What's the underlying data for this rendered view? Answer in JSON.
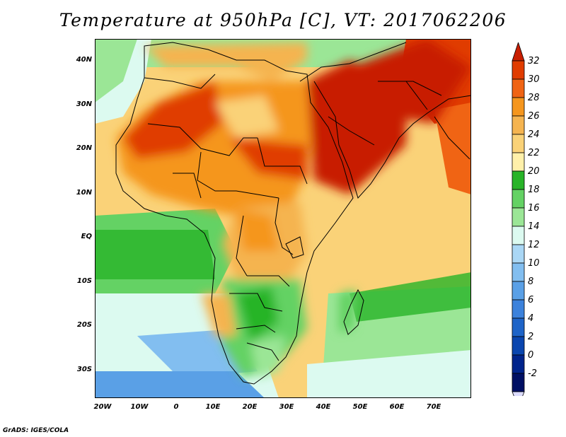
{
  "title": "Temperature at 950hPa [C], VT: 2017062206",
  "footer": "GrADS: IGES/COLA",
  "map": {
    "lat_labels": [
      "40N",
      "30N",
      "20N",
      "10N",
      "EQ",
      "10S",
      "20S",
      "30S"
    ],
    "lon_labels": [
      "20W",
      "10W",
      "0",
      "10E",
      "20E",
      "30E",
      "40E",
      "50E",
      "60E",
      "70E"
    ],
    "lon_range": [
      -22,
      80
    ],
    "lat_range": [
      -36,
      45
    ]
  },
  "colorbar": {
    "labels": [
      "32",
      "30",
      "28",
      "26",
      "24",
      "22",
      "20",
      "18",
      "16",
      "14",
      "12",
      "10",
      "8",
      "6",
      "4",
      "2",
      "0",
      "-2"
    ],
    "colors": [
      "#c81e00",
      "#e03c00",
      "#f06414",
      "#f5961e",
      "#f5b450",
      "#fad278",
      "#fff0aa",
      "#28b428",
      "#64d264",
      "#9be696",
      "#dcfaf0",
      "#aad7f5",
      "#82bef0",
      "#5aa0e6",
      "#3c82dc",
      "#1e64c8",
      "#0a46af",
      "#00248c",
      "#001064",
      "#dcdcff"
    ]
  }
}
